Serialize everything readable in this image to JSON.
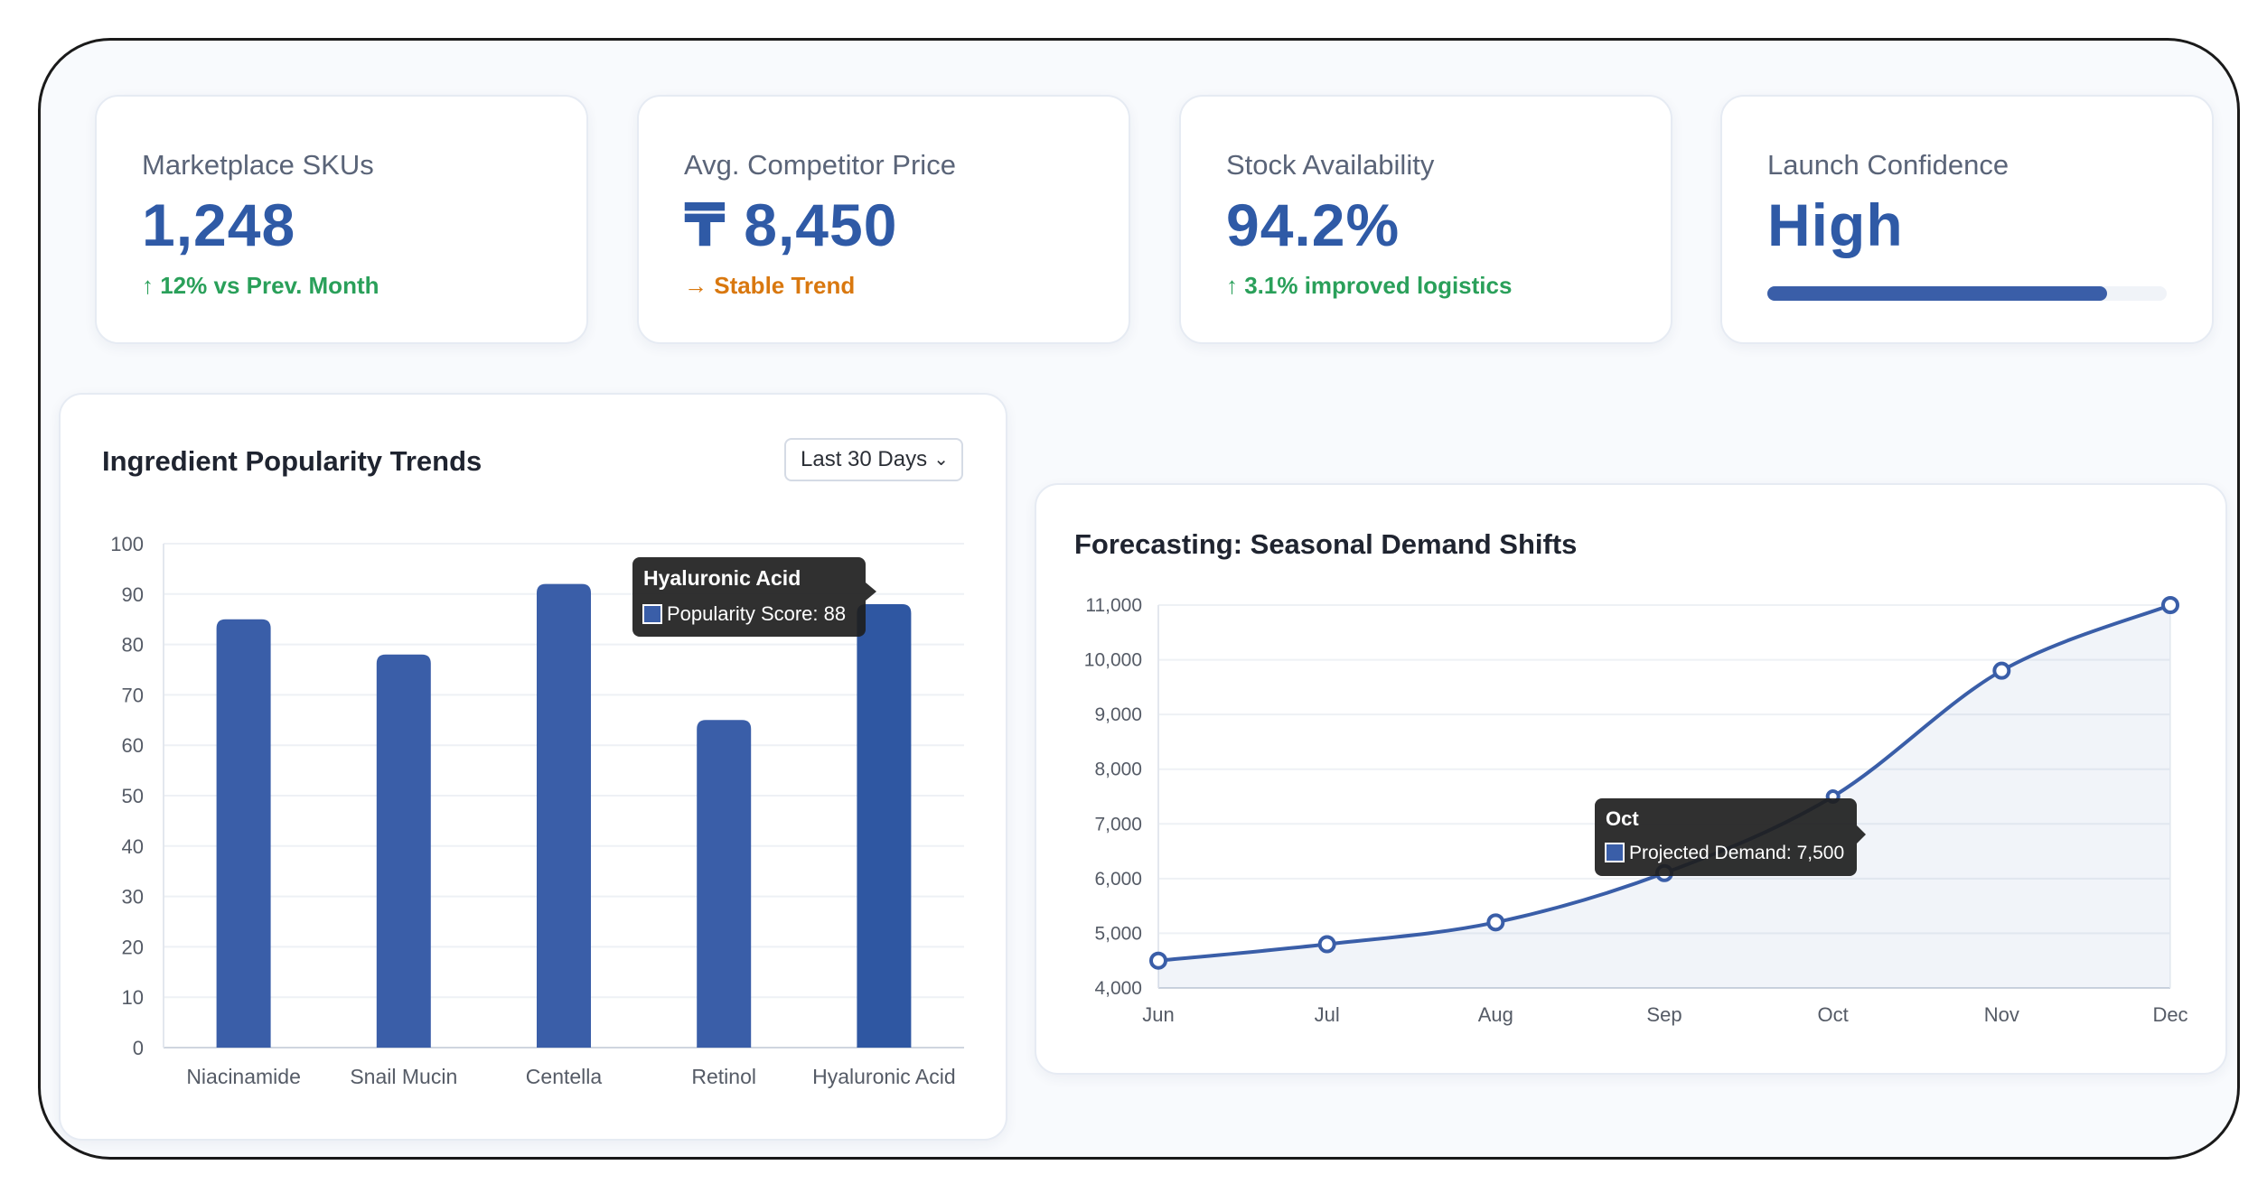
{
  "kpis": [
    {
      "label": "Marketplace SKUs",
      "value": "1,248",
      "sub": "↑ 12% vs Prev. Month"
    },
    {
      "label": "Avg. Competitor Price",
      "value": "₸ 8,450",
      "sub": "→ Stable Trend"
    },
    {
      "label": "Stock Availability",
      "value": "94.2%",
      "sub": "↑ 3.1% improved logistics"
    },
    {
      "label": "Launch Confidence",
      "value": "High",
      "progress": 0.85
    }
  ],
  "popularity": {
    "title": "Ingredient Popularity Trends",
    "filter": "Last 30 Days",
    "tooltip": {
      "title": "Hyaluronic Acid",
      "label": "Popularity Score: 88"
    }
  },
  "forecast": {
    "title": "Forecasting: Seasonal Demand Shifts",
    "tooltip": {
      "title": "Oct",
      "label": "Projected Demand: 7,500"
    }
  },
  "colors": {
    "primary": "#3a5ea8",
    "accent": "#2f5aa6",
    "up": "#2aa05a",
    "flat": "#d9780f"
  },
  "chart_data": [
    {
      "type": "bar",
      "title": "Ingredient Popularity Trends",
      "categories": [
        "Niacinamide",
        "Snail Mucin",
        "Centella",
        "Retinol",
        "Hyaluronic Acid"
      ],
      "values": [
        85,
        78,
        92,
        65,
        88
      ],
      "ylim": [
        0,
        100
      ],
      "yticks": [
        0,
        10,
        20,
        30,
        40,
        50,
        60,
        70,
        80,
        90,
        100
      ],
      "grid": true
    },
    {
      "type": "line",
      "title": "Forecasting: Seasonal Demand Shifts",
      "x": [
        "Jun",
        "Jul",
        "Aug",
        "Sep",
        "Oct",
        "Nov",
        "Dec"
      ],
      "values": [
        4500,
        4800,
        5200,
        6100,
        7500,
        9800,
        11000
      ],
      "ylim": [
        4000,
        11000
      ],
      "yticks": [
        "4,000",
        "5,000",
        "6,000",
        "7,000",
        "8,000",
        "9,000",
        "10,000",
        "11,000"
      ],
      "area_fill": true,
      "grid": true
    }
  ]
}
